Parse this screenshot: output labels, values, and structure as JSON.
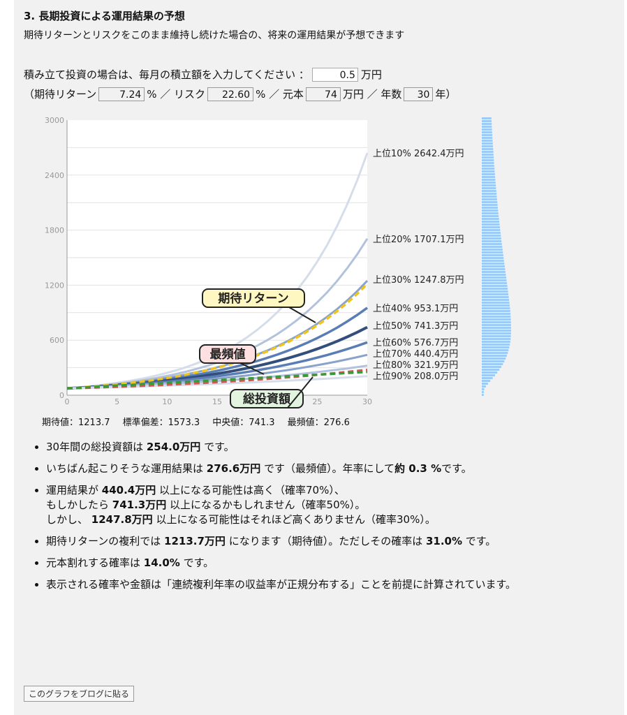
{
  "section": {
    "title": "3. 長期投資による運用結果の予想",
    "subtitle": "期待リターンとリスクをこのまま維持し続けた場合の、将来の運用結果が予想できます"
  },
  "form": {
    "monthly_prompt": "積み立て投資の場合は、毎月の積立額を入力してください ：",
    "monthly_value": "0.5",
    "monthly_unit": "万円",
    "paren_open": "（期待リターン",
    "expected_return": "7.24",
    "percent1": "% ／ リスク",
    "risk": "22.60",
    "percent2": "% ／ 元本",
    "principal": "74",
    "principal_unit": "万円 ／ 年数",
    "years": "30",
    "years_unit": "年）"
  },
  "stats": {
    "expected": "期待値：1213.7",
    "stdev": "標準偏差：1573.3",
    "median": "中央値：741.3",
    "mode": "最頻値：276.6"
  },
  "bullets": {
    "b1": [
      "30年間の総投資額は ",
      "254.0万円",
      " です。"
    ],
    "b2": [
      "いちばん起こりそうな運用結果は ",
      "276.6万円",
      " です（最頻値）。年率にして",
      "約 0.3 %",
      "です。"
    ],
    "b3a": [
      "運用結果が ",
      "440.4万円",
      " 以上になる可能性は高く（確率70%）、"
    ],
    "b3b": [
      "もしかしたら ",
      "741.3万円",
      " 以上になるかもしれません（確率50%）。"
    ],
    "b3c": [
      "しかし、 ",
      "1247.8万円",
      " 以上になる可能性はそれほど高くありません（確率30%）。"
    ],
    "b4": [
      "期待リターンの複利では ",
      "1213.7万円",
      " になります（期待値）。ただしその確率は ",
      "31.0%",
      " です。"
    ],
    "b5": [
      "元本割れする確率は ",
      "14.0%",
      " です。"
    ],
    "b6": "表示される確率や金額は「連続複利年率の収益率が正規分布する」ことを前提に計算されています。"
  },
  "button_label": "このグラフをブログに貼る",
  "chart_data": {
    "type": "line",
    "x": [
      0,
      5,
      10,
      15,
      20,
      25,
      30
    ],
    "xlim": [
      0,
      30
    ],
    "ylim": [
      0,
      3000
    ],
    "y_ticks": [
      0,
      600,
      1200,
      1800,
      2400,
      3000
    ],
    "x_ticks": [
      0,
      5,
      10,
      15,
      20,
      25,
      30
    ],
    "percentile_series": [
      {
        "label": "上位10% 2642.4万円",
        "end": 2642.4,
        "color": "#d5ddeb",
        "width": 3
      },
      {
        "label": "上位20% 1707.1万円",
        "end": 1707.1,
        "color": "#b3c2dc",
        "width": 3
      },
      {
        "label": "上位30% 1247.8万円",
        "end": 1247.8,
        "color": "#8aa3ca",
        "width": 3
      },
      {
        "label": "上位40% 953.1万円",
        "end": 953.1,
        "color": "#5a7db5",
        "width": 3.5
      },
      {
        "label": "上位50% 741.3万円",
        "end": 741.3,
        "color": "#324f7c",
        "width": 4
      },
      {
        "label": "上位60% 576.7万円",
        "end": 576.7,
        "color": "#5a7db5",
        "width": 3.5
      },
      {
        "label": "上位70% 440.4万円",
        "end": 440.4,
        "color": "#8aa3ca",
        "width": 3
      },
      {
        "label": "上位80% 321.9万円",
        "end": 321.9,
        "color": "#b3c2dc",
        "width": 3
      },
      {
        "label": "上位90% 208.0万円",
        "end": 208.0,
        "color": "#d5ddeb",
        "width": 3
      }
    ],
    "annotations": [
      {
        "label": "期待リターン",
        "end": 1213.7,
        "color": "#f0c419",
        "style": "dashed"
      },
      {
        "label": "最頻値",
        "end": 276.6,
        "color": "#d9534f",
        "style": "dashed"
      },
      {
        "label": "総投資額",
        "end": 254.0,
        "color": "#3a9a3a",
        "style": "dashed"
      }
    ],
    "start_value": 74,
    "distribution_color": "#9dcbf5"
  }
}
